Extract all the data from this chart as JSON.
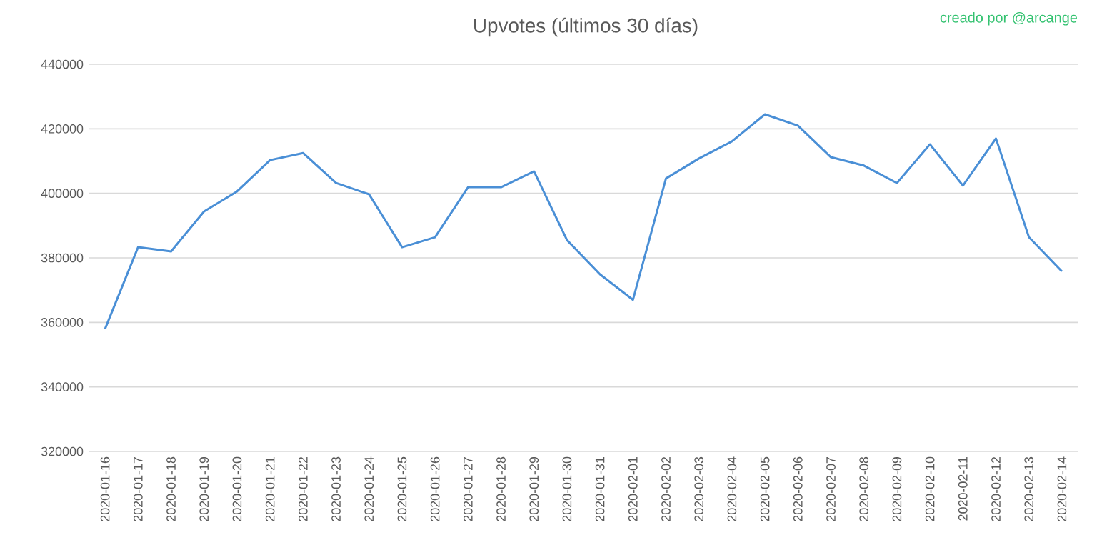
{
  "chart_data": {
    "type": "line",
    "title": "Upvotes (últimos 30 días)",
    "annotations": [
      "creado por @arcange"
    ],
    "categories": [
      "2020-01-16",
      "2020-01-17",
      "2020-01-18",
      "2020-01-19",
      "2020-01-20",
      "2020-01-21",
      "2020-01-22",
      "2020-01-23",
      "2020-01-24",
      "2020-01-25",
      "2020-01-26",
      "2020-01-27",
      "2020-01-28",
      "2020-01-29",
      "2020-01-30",
      "2020-01-31",
      "2020-02-01",
      "2020-02-02",
      "2020-02-03",
      "2020-02-04",
      "2020-02-05",
      "2020-02-06",
      "2020-02-07",
      "2020-02-08",
      "2020-02-09",
      "2020-02-10",
      "2020-02-11",
      "2020-02-12",
      "2020-02-13",
      "2020-02-14"
    ],
    "series": [
      {
        "color": "#4a8fd6",
        "values": [
          358000,
          383300,
          382000,
          394400,
          400600,
          410300,
          412500,
          403200,
          399700,
          383300,
          386400,
          401900,
          401900,
          406800,
          385500,
          374900,
          367000,
          404600,
          410800,
          416100,
          424500,
          421000,
          411200,
          408600,
          403200,
          415200,
          402400,
          417000,
          386400,
          375800
        ]
      }
    ],
    "ylim": [
      320000,
      440000
    ],
    "yticks": [
      320000,
      340000,
      360000,
      380000,
      400000,
      420000,
      440000
    ],
    "grid": "y"
  }
}
